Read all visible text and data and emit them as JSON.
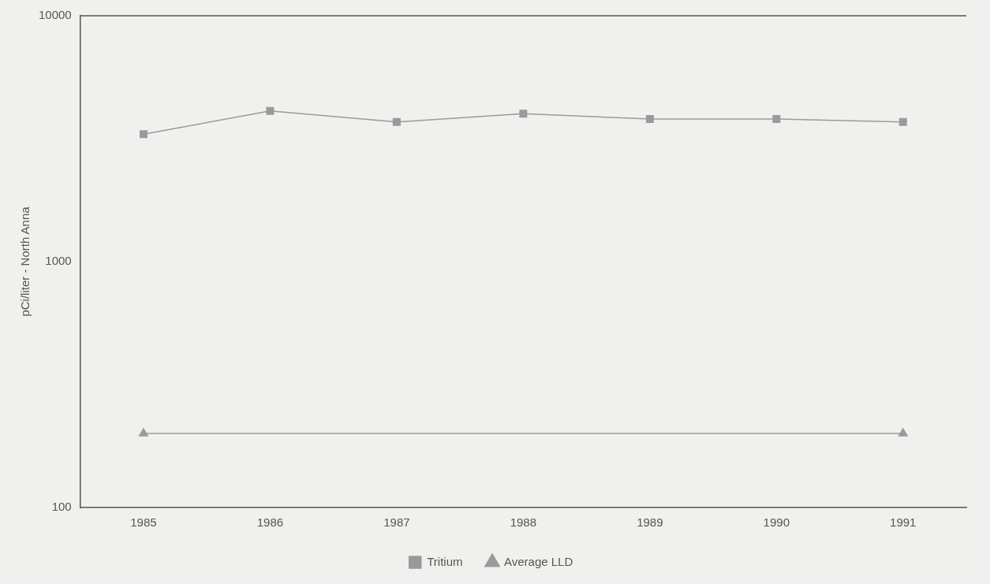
{
  "chart_data": {
    "type": "line",
    "ylabel": "pCi/liter - North Anna",
    "categories": [
      "1985",
      "1986",
      "1987",
      "1988",
      "1989",
      "1990",
      "1991"
    ],
    "series": [
      {
        "name": "Tritium",
        "color": "#9a9a9a",
        "marker": "square",
        "values": [
          3300,
          4100,
          3700,
          4000,
          3800,
          3800,
          3700
        ]
      },
      {
        "name": "Average LLD",
        "color": "#9a9a9a",
        "marker": "triangle",
        "values": [
          200,
          null,
          null,
          null,
          null,
          null,
          200
        ]
      }
    ],
    "log": "y",
    "ylim": [
      100,
      10000
    ],
    "yticks": [
      100,
      1000,
      10000
    ],
    "grid": false,
    "legend": "bottom",
    "line_style": "solid"
  }
}
